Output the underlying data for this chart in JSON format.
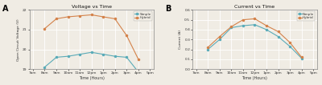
{
  "time_labels": [
    "7am",
    "8am",
    "9am",
    "10am",
    "11am",
    "12pm",
    "1pm",
    "2pm",
    "3pm",
    "4pm",
    "5pm"
  ],
  "voltage_simple": [
    null,
    19.1,
    19.6,
    19.65,
    19.75,
    19.85,
    19.75,
    19.65,
    19.6,
    18.85,
    null
  ],
  "voltage_hybrid": [
    null,
    21.05,
    21.55,
    21.65,
    21.7,
    21.75,
    21.65,
    21.55,
    20.7,
    19.5,
    null
  ],
  "current_simple": [
    null,
    0.2,
    0.3,
    0.42,
    0.44,
    0.45,
    0.4,
    0.33,
    0.23,
    0.11,
    null
  ],
  "current_hybrid": [
    null,
    0.22,
    0.33,
    0.43,
    0.5,
    0.51,
    0.44,
    0.38,
    0.27,
    0.12,
    null
  ],
  "color_simple": "#5aabb8",
  "color_hybrid": "#d4824a",
  "marker": "o",
  "title_A": "Voltage vs Time",
  "title_B": "Current vs Time",
  "ylabel_A": "Open Circuit Voltage (V)",
  "ylabel_B": "Current (A)",
  "xlabel": "Time (Hours)",
  "ylim_A": [
    19,
    22
  ],
  "ylim_B": [
    0,
    0.6
  ],
  "yticks_A": [
    19,
    20,
    21,
    22
  ],
  "yticks_B": [
    0,
    0.1,
    0.2,
    0.3,
    0.4,
    0.5,
    0.6
  ],
  "bg_color": "#f0ece4",
  "grid_color": "#ffffff",
  "label_A": "A",
  "label_B": "B",
  "legend_simple": "Simple",
  "legend_hybrid": "Hybrid"
}
